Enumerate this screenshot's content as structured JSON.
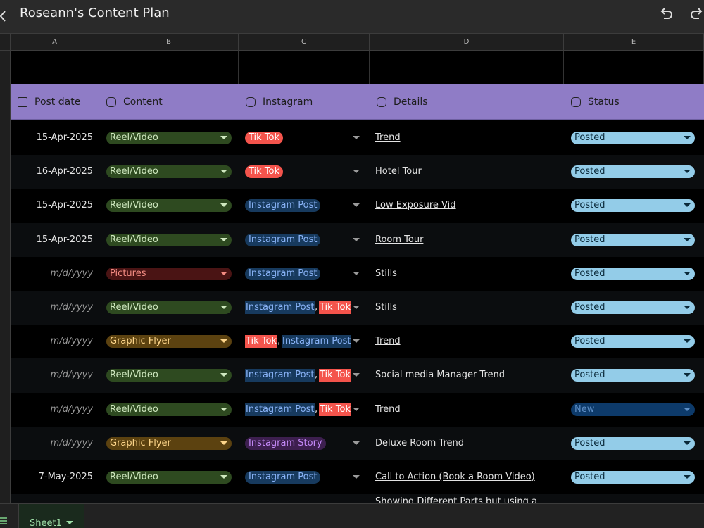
{
  "header": {
    "title": "Roseann's Content Plan"
  },
  "column_letters": [
    "A",
    "B",
    "C",
    "D",
    "E"
  ],
  "styles": {
    "reel": {
      "bg": "#2e4a20",
      "fg": "#cfe8bf"
    },
    "pictures": {
      "bg": "#4a1414",
      "fg": "#f28b82"
    },
    "flyer": {
      "bg": "#5c4210",
      "fg": "#fdd58a"
    },
    "tiktok": {
      "bg": "#f4544c",
      "fg": "#ffffff"
    },
    "igpost": {
      "bg": "#173a5e",
      "fg": "#8ab4f8"
    },
    "igstory": {
      "bg": "#3d1f4f",
      "fg": "#c58af9"
    },
    "posted": {
      "bg": "#93cce8",
      "fg": "#0b2a3a"
    },
    "new": {
      "bg": "#0d3a6a",
      "fg": "#5e8fc7"
    }
  },
  "table": {
    "headers": [
      "Post date",
      "Content",
      "Instagram",
      "Details",
      "Status"
    ],
    "separator": ",",
    "rows": [
      {
        "date": "15-Apr-2025",
        "content": {
          "text": "Reel/Video",
          "style": "reel"
        },
        "instagram": [
          {
            "text": "Tik Tok",
            "style": "tiktok"
          }
        ],
        "details": "Trend",
        "link": true,
        "status": {
          "text": "Posted",
          "style": "posted"
        }
      },
      {
        "date": "16-Apr-2025",
        "content": {
          "text": "Reel/Video",
          "style": "reel"
        },
        "instagram": [
          {
            "text": "Tik Tok",
            "style": "tiktok"
          }
        ],
        "details": "Hotel Tour",
        "link": true,
        "status": {
          "text": "Posted",
          "style": "posted"
        }
      },
      {
        "date": "15-Apr-2025",
        "content": {
          "text": "Reel/Video",
          "style": "reel"
        },
        "instagram": [
          {
            "text": "Instagram Post",
            "style": "igpost"
          }
        ],
        "details": "Low Exposure Vid",
        "link": true,
        "status": {
          "text": "Posted",
          "style": "posted"
        }
      },
      {
        "date": "15-Apr-2025",
        "content": {
          "text": "Reel/Video",
          "style": "reel"
        },
        "instagram": [
          {
            "text": "Instagram Post",
            "style": "igpost"
          }
        ],
        "details": "Room Tour",
        "link": true,
        "status": {
          "text": "Posted",
          "style": "posted"
        }
      },
      {
        "date": "m/d/yyyy",
        "placeholder": true,
        "content": {
          "text": "Pictures",
          "style": "pictures"
        },
        "instagram": [
          {
            "text": "Instagram Post",
            "style": "igpost"
          }
        ],
        "details": "Stills",
        "link": false,
        "status": {
          "text": "Posted",
          "style": "posted"
        }
      },
      {
        "date": "m/d/yyyy",
        "placeholder": true,
        "content": {
          "text": "Reel/Video",
          "style": "reel"
        },
        "instagram": [
          {
            "text": "Instagram Post",
            "style": "igpost"
          },
          {
            "text": "Tik Tok",
            "style": "tiktok"
          }
        ],
        "details": "Stills",
        "link": false,
        "status": {
          "text": "Posted",
          "style": "posted"
        }
      },
      {
        "date": "m/d/yyyy",
        "placeholder": true,
        "content": {
          "text": "Graphic Flyer",
          "style": "flyer"
        },
        "instagram": [
          {
            "text": "Tik Tok",
            "style": "tiktok"
          },
          {
            "text": "Instagram Post",
            "style": "igpost"
          }
        ],
        "details": "Trend",
        "link": true,
        "status": {
          "text": "Posted",
          "style": "posted"
        }
      },
      {
        "date": "m/d/yyyy",
        "placeholder": true,
        "content": {
          "text": "Reel/Video",
          "style": "reel"
        },
        "instagram": [
          {
            "text": "Instagram Post",
            "style": "igpost"
          },
          {
            "text": "Tik Tok",
            "style": "tiktok"
          }
        ],
        "details": "Social media Manager Trend",
        "link": false,
        "status": {
          "text": "Posted",
          "style": "posted"
        }
      },
      {
        "date": "m/d/yyyy",
        "placeholder": true,
        "content": {
          "text": "Reel/Video",
          "style": "reel"
        },
        "instagram": [
          {
            "text": "Instagram Post",
            "style": "igpost"
          },
          {
            "text": "Tik Tok",
            "style": "tiktok"
          }
        ],
        "details": "Trend",
        "link": true,
        "status": {
          "text": "New",
          "style": "new"
        }
      },
      {
        "date": "m/d/yyyy",
        "placeholder": true,
        "content": {
          "text": "Graphic Flyer",
          "style": "flyer"
        },
        "instagram": [
          {
            "text": "Instagram Story",
            "style": "igstory"
          }
        ],
        "details": "Deluxe Room Trend",
        "link": false,
        "status": {
          "text": "Posted",
          "style": "posted"
        }
      },
      {
        "date": "7-May-2025",
        "content": {
          "text": "Reel/Video",
          "style": "reel"
        },
        "instagram": [
          {
            "text": "Instagram Post",
            "style": "igpost"
          }
        ],
        "details": "Call to Action (Book a Room Video)",
        "link": true,
        "status": {
          "text": "Posted",
          "style": "posted"
        }
      },
      {
        "details": "Showing Different Parts but using a",
        "link": false
      }
    ]
  },
  "sheet_tab": "Sheet1"
}
